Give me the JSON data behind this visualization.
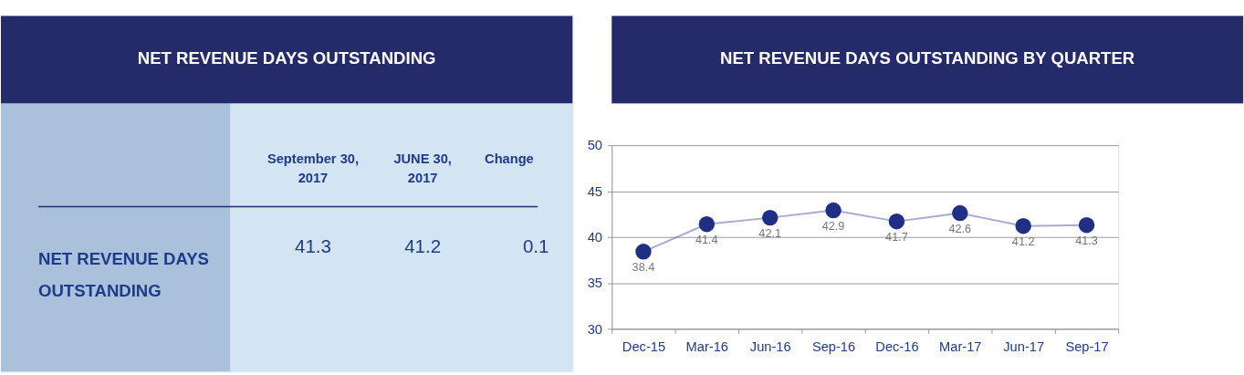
{
  "chart_data": [
    {
      "type": "other",
      "title": "NET REVENUE DAYS OUTSTANDING",
      "annotations": [
        "September 30, 2017",
        "JUNE 30, 2017",
        "Change",
        "NET REVENUE DAYS OUTSTANDING",
        "41.3",
        "41.2",
        "0.1"
      ]
    },
    {
      "type": "line",
      "title": "NET REVENUE DAYS OUTSTANDING BY QUARTER",
      "categories": [
        "Dec-15",
        "Mar-16",
        "Jun-16",
        "Sep-16",
        "Dec-16",
        "Mar-17",
        "Jun-17",
        "Sep-17"
      ],
      "series": [
        {
          "color": "#1f2f86",
          "values": [
            38.4,
            41.4,
            42.1,
            42.9,
            41.7,
            42.6,
            41.2,
            41.3
          ]
        }
      ],
      "ylim": [
        30,
        50
      ],
      "yticks": [
        30,
        35,
        40,
        45,
        50
      ],
      "grid": "y",
      "marker": "circle",
      "data_labels": true
    }
  ]
}
